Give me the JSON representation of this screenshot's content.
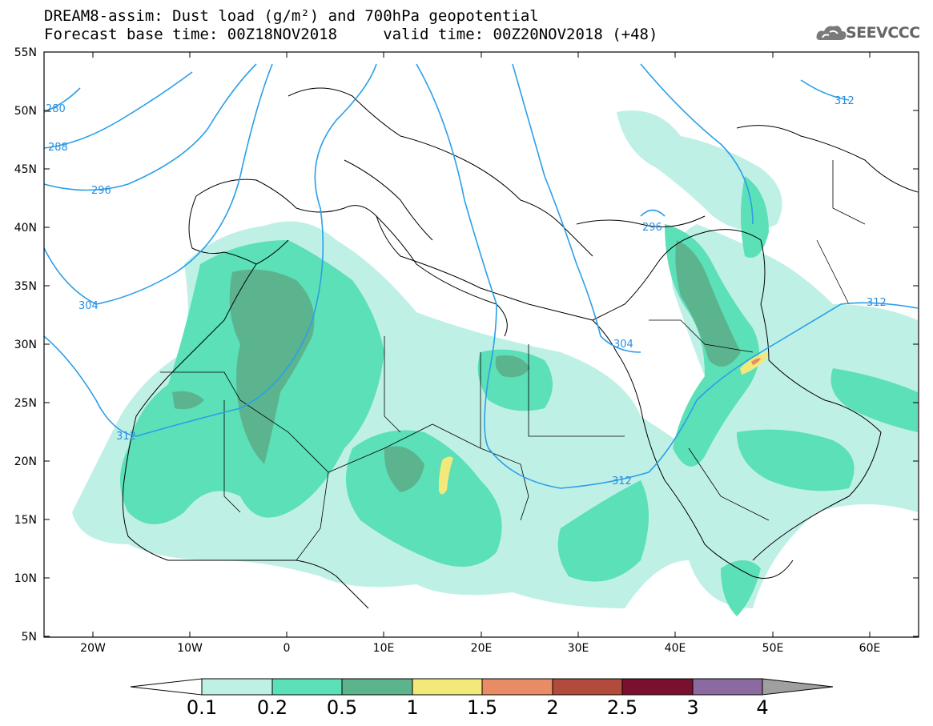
{
  "title": {
    "line1": "DREAM8-assim: Dust load (g/m²) and 700hPa geopotential",
    "line2": "Forecast base time: 00Z18NOV2018     valid time: 00Z20NOV2018 (+48)"
  },
  "logo": {
    "text": "SEEVCCC",
    "icon": "cloud-icon"
  },
  "axes": {
    "lat_labels": [
      "55N",
      "50N",
      "45N",
      "40N",
      "35N",
      "30N",
      "25N",
      "20N",
      "15N",
      "10N",
      "5N"
    ],
    "lon_labels": [
      "20W",
      "10W",
      "0",
      "10E",
      "20E",
      "30E",
      "40E",
      "50E",
      "60E"
    ]
  },
  "contours": {
    "labels": [
      "280",
      "288",
      "296",
      "304",
      "312",
      "296",
      "304",
      "312",
      "312",
      "312"
    ]
  },
  "colorbar": {
    "ticks": [
      "0.1",
      "0.2",
      "0.5",
      "1",
      "1.5",
      "2",
      "2.5",
      "3",
      "4"
    ],
    "colors": [
      "#ffffff",
      "#bff0e6",
      "#5be0b8",
      "#5cb48e",
      "#f2e97a",
      "#e88c66",
      "#b24b3c",
      "#7a0f2e",
      "#8a6aa0",
      "#a0a0a0"
    ]
  }
}
